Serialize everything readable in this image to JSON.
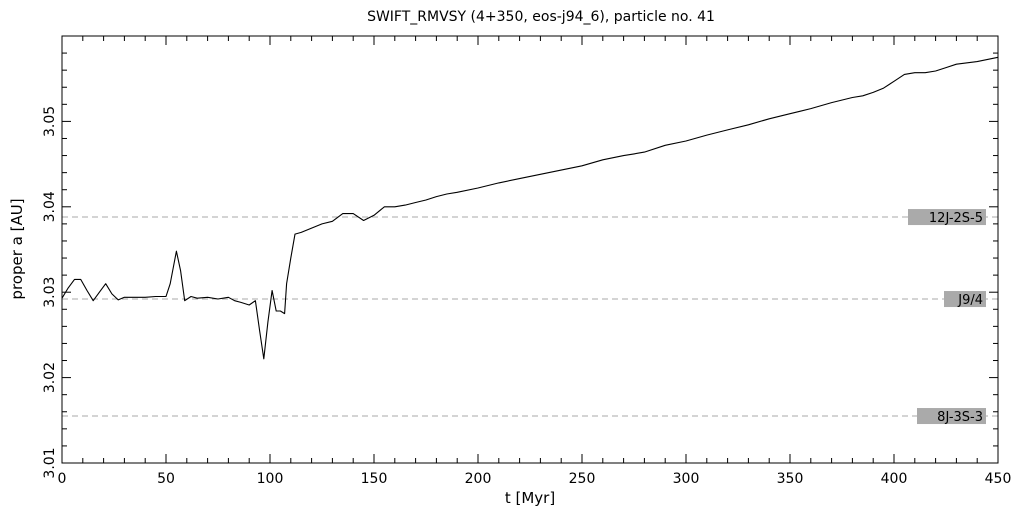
{
  "chart_data": {
    "type": "line",
    "title": "SWIFT_RMVSY (4+350, eos-j94_6), particle no. 41",
    "xlabel": "t [Myr]",
    "ylabel": "proper a [AU]",
    "xlim": [
      0,
      450
    ],
    "ylim": [
      3.01,
      3.06
    ],
    "x_ticks": [
      0,
      50,
      100,
      150,
      200,
      250,
      300,
      350,
      400,
      450
    ],
    "x_tick_labels": [
      "0",
      "50",
      "100",
      "150",
      "200",
      "250",
      "300",
      "350",
      "400",
      "450"
    ],
    "y_ticks": [
      3.01,
      3.02,
      3.03,
      3.04,
      3.05
    ],
    "y_tick_labels": [
      "3.01",
      "3.02",
      "3.03",
      "3.04",
      "3.05"
    ],
    "grid": false,
    "series": [
      {
        "x": [
          0,
          3,
          6,
          9,
          12,
          15,
          18,
          21,
          24,
          27,
          30,
          35,
          40,
          45,
          50,
          52,
          55,
          57,
          59,
          62,
          65,
          70,
          75,
          80,
          83,
          86,
          90,
          93,
          95,
          97,
          99,
          101,
          103,
          105,
          107,
          108,
          110,
          112,
          115,
          120,
          125,
          130,
          135,
          140,
          145,
          150,
          155,
          160,
          165,
          170,
          175,
          180,
          185,
          190,
          200,
          210,
          220,
          230,
          240,
          250,
          260,
          270,
          275,
          280,
          290,
          300,
          310,
          320,
          330,
          340,
          350,
          355,
          360,
          370,
          380,
          385,
          390,
          395,
          400,
          405,
          410,
          415,
          420,
          425,
          430,
          440,
          450
        ],
        "y": [
          3.0293,
          3.0305,
          3.0315,
          3.0315,
          3.0302,
          3.029,
          3.03,
          3.031,
          3.0298,
          3.0291,
          3.0294,
          3.0294,
          3.0294,
          3.0295,
          3.0295,
          3.031,
          3.0348,
          3.0325,
          3.029,
          3.0295,
          3.0293,
          3.0294,
          3.0292,
          3.0294,
          3.029,
          3.0288,
          3.0285,
          3.029,
          3.0255,
          3.0222,
          3.0265,
          3.0302,
          3.0278,
          3.0278,
          3.0275,
          3.031,
          3.034,
          3.0368,
          3.037,
          3.0375,
          3.038,
          3.0383,
          3.0392,
          3.0392,
          3.0384,
          3.039,
          3.04,
          3.04,
          3.0402,
          3.0405,
          3.0408,
          3.0412,
          3.0415,
          3.0417,
          3.0422,
          3.0428,
          3.0433,
          3.0438,
          3.0443,
          3.0448,
          3.0455,
          3.046,
          3.0462,
          3.0464,
          3.0472,
          3.0477,
          3.0484,
          3.049,
          3.0496,
          3.0503,
          3.0509,
          3.0512,
          3.0515,
          3.0522,
          3.0528,
          3.053,
          3.0534,
          3.0539,
          3.0547,
          3.0555,
          3.0557,
          3.0557,
          3.0559,
          3.0563,
          3.0567,
          3.057,
          3.0575
        ]
      }
    ],
    "reference_lines": [
      {
        "label": "12J-2S-5",
        "y": 3.0388
      },
      {
        "label": "J9/4",
        "y": 3.0292
      },
      {
        "label": "8J-3S-3",
        "y": 3.0155
      }
    ],
    "colors": {
      "line": "#000000",
      "reference_line": "#aaaaaa",
      "label_box": "#aaaaaa",
      "frame": "#000000"
    }
  }
}
